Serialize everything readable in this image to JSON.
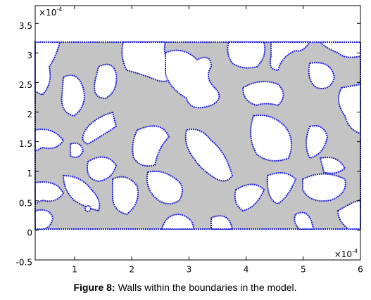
{
  "chart_data": {
    "type": "geometry",
    "xlim": [
      0.31,
      6
    ],
    "ylim": [
      -0.5,
      3.8
    ],
    "xticks": [
      1,
      2,
      3,
      4,
      5,
      6
    ],
    "yticks": [
      -0.5,
      0,
      0.5,
      1,
      1.5,
      2,
      2.5,
      3,
      3.5
    ],
    "x_multiplier": {
      "base": "×10",
      "exponent": "-4"
    },
    "y_multiplier": {
      "base": "×10",
      "exponent": "-4"
    },
    "caption": {
      "label": "Figure 8:",
      "text": "Walls within the boundaries in the model."
    },
    "domain_color": "#c4c4c4",
    "wall_color": "#2020d8"
  }
}
